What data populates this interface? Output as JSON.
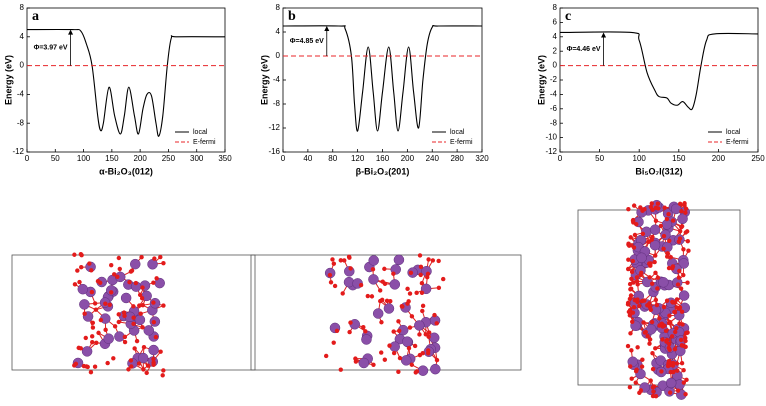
{
  "chart_data": [
    {
      "type": "line",
      "panel": "a",
      "annotation": "Φ=3.97 eV",
      "x_label": "α-Bi₂O₃(012)",
      "y_label": "Energy (eV)",
      "xlim": [
        0,
        350
      ],
      "xticks": [
        0,
        50,
        100,
        150,
        200,
        250,
        300,
        350
      ],
      "ylim": [
        -12,
        8
      ],
      "yticks": [
        -12,
        -8,
        -4,
        0,
        4,
        8
      ],
      "legend": "lower right",
      "series": [
        {
          "name": "local",
          "color": "#000000",
          "style": "solid",
          "x": [
            0,
            80,
            95,
            105,
            115,
            125,
            130,
            135,
            145,
            155,
            165,
            172,
            180,
            190,
            197,
            205,
            212,
            220,
            228,
            233,
            240,
            248,
            255,
            265,
            350
          ],
          "values": [
            5,
            5,
            4.8,
            3,
            0,
            -7,
            -9,
            -8,
            -3,
            -7,
            -9.5,
            -7,
            -3,
            -7,
            -9.5,
            -6,
            -4,
            -4.2,
            -8,
            -9.8,
            -7,
            0,
            3.8,
            4,
            4
          ]
        },
        {
          "name": "E-fermi",
          "color": "#e8262a",
          "style": "dashed",
          "x": [
            0,
            350
          ],
          "values": [
            0,
            0
          ]
        }
      ]
    },
    {
      "type": "line",
      "panel": "b",
      "annotation": "Φ=4.85 eV",
      "x_label": "β-Bi₂O₃(201)",
      "y_label": "Energy (eV)",
      "xlim": [
        0,
        320
      ],
      "xticks": [
        0,
        40,
        80,
        120,
        160,
        200,
        240,
        280,
        320
      ],
      "ylim": [
        -16,
        8
      ],
      "yticks": [
        -16,
        -12,
        -8,
        -4,
        0,
        4,
        8
      ],
      "legend": "lower right",
      "series": [
        {
          "name": "local",
          "color": "#000000",
          "style": "solid",
          "x": [
            0,
            90,
            100,
            110,
            115,
            120,
            128,
            137,
            145,
            152,
            160,
            170,
            178,
            185,
            193,
            202,
            210,
            218,
            225,
            232,
            240,
            250,
            320
          ],
          "values": [
            5,
            5,
            4.5,
            0,
            -8,
            -12.5,
            -6,
            1.5,
            -6,
            -12.5,
            -6,
            1.5,
            -6,
            -12.5,
            -6,
            1.5,
            -6,
            -12,
            -4,
            2,
            4.8,
            5,
            5
          ]
        },
        {
          "name": "E-fermi",
          "color": "#e8262a",
          "style": "dashed",
          "x": [
            0,
            320
          ],
          "values": [
            0,
            0
          ]
        }
      ]
    },
    {
      "type": "line",
      "panel": "c",
      "annotation": "Φ=4.46 eV",
      "x_label": "Bi₅O₇I(312)",
      "y_label": "Energy (eV)",
      "xlim": [
        0,
        250
      ],
      "xticks": [
        0,
        50,
        100,
        150,
        200,
        250
      ],
      "ylim": [
        -12,
        8
      ],
      "yticks": [
        -12,
        -10,
        -8,
        -6,
        -4,
        -2,
        0,
        2,
        4,
        6,
        8
      ],
      "legend": "lower right",
      "series": [
        {
          "name": "local",
          "color": "#000000",
          "style": "solid",
          "x": [
            0,
            90,
            100,
            110,
            120,
            125,
            135,
            140,
            148,
            155,
            162,
            167,
            172,
            178,
            185,
            195,
            250
          ],
          "values": [
            4.6,
            4.6,
            3.5,
            -1,
            -3.5,
            -4.3,
            -4.5,
            -5.2,
            -5.5,
            -5,
            -5.8,
            -6,
            -4,
            0,
            3.5,
            4.4,
            4.4
          ]
        },
        {
          "name": "E-fermi",
          "color": "#e8262a",
          "style": "dashed",
          "x": [
            0,
            250
          ],
          "values": [
            0,
            0
          ]
        }
      ]
    }
  ]
}
